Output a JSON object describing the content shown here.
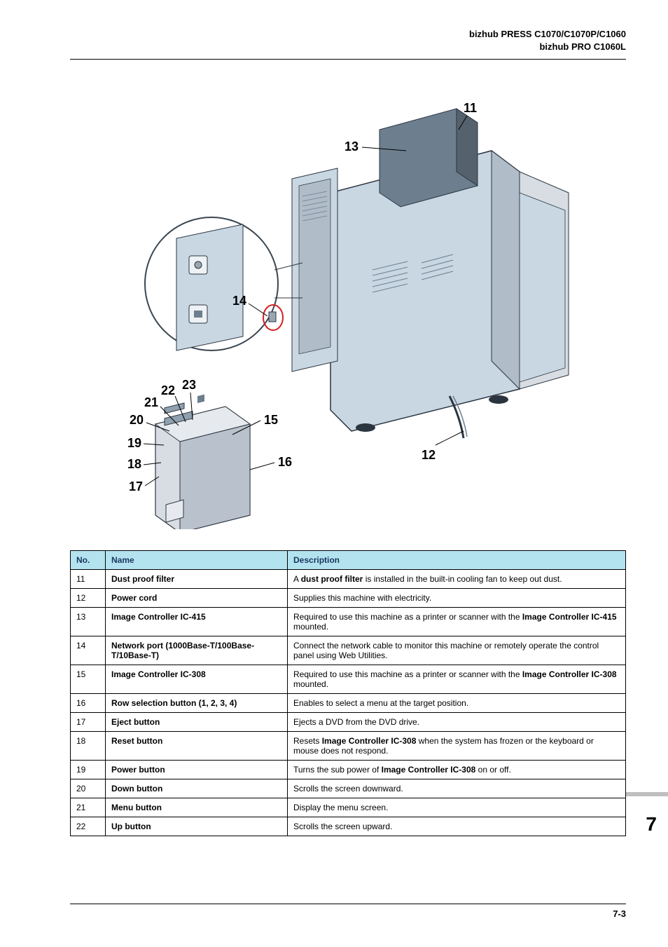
{
  "header": {
    "line1": "bizhub PRESS C1070/C1070P/C1060",
    "line2": "bizhub PRO C1060L"
  },
  "diagram": {
    "callouts": [
      "11",
      "12",
      "13",
      "14",
      "15",
      "16",
      "17",
      "18",
      "19",
      "20",
      "21",
      "22",
      "23"
    ],
    "machine_body_fill": "#c9d7e3",
    "machine_dark_fill": "#6d7f8e",
    "inset_circle_stroke": "#3a4650",
    "controller_body_fill": "#d7dde3",
    "controller_front_fill": "#b9c2cc",
    "redcircle_stroke": "#d42020"
  },
  "table": {
    "headers": [
      "No.",
      "Name",
      "Description"
    ],
    "header_bg": "#b4e3f0",
    "header_fg": "#17365d",
    "rows": [
      {
        "no": "11",
        "name": "Dust proof filter",
        "desc_pre": "A ",
        "desc_bold": "dust proof filter",
        "desc_post": " is installed in the built-in cooling fan to keep out dust."
      },
      {
        "no": "12",
        "name": "Power cord",
        "desc_pre": "Supplies this machine with electricity.",
        "desc_bold": "",
        "desc_post": ""
      },
      {
        "no": "13",
        "name": "Image Controller IC-415",
        "desc_pre": "Required to use this machine as a printer or scanner with the ",
        "desc_bold": "Image Controller IC-415",
        "desc_post": " mounted."
      },
      {
        "no": "14",
        "name": "Network port (1000Base-T/100Base-T/10Base-T)",
        "desc_pre": "Connect the network cable to monitor this machine or remotely operate the control panel using Web Utilities.",
        "desc_bold": "",
        "desc_post": ""
      },
      {
        "no": "15",
        "name": "Image Controller IC-308",
        "desc_pre": "Required to use this machine as a printer or scanner with the ",
        "desc_bold": "Image Controller IC-308",
        "desc_post": " mounted."
      },
      {
        "no": "16",
        "name": "Row selection button (1, 2, 3, 4)",
        "desc_pre": "Enables to select a menu at the target position.",
        "desc_bold": "",
        "desc_post": ""
      },
      {
        "no": "17",
        "name": "Eject button",
        "desc_pre": "Ejects a DVD from the DVD drive.",
        "desc_bold": "",
        "desc_post": ""
      },
      {
        "no": "18",
        "name": "Reset button",
        "desc_pre": "Resets ",
        "desc_bold": "Image Controller IC-308",
        "desc_post": " when the system has frozen or the keyboard or mouse does not respond."
      },
      {
        "no": "19",
        "name": "Power button",
        "desc_pre": "Turns the sub power of ",
        "desc_bold": "Image Controller IC-308",
        "desc_post": " on or off."
      },
      {
        "no": "20",
        "name": "Down button",
        "desc_pre": "Scrolls the screen downward.",
        "desc_bold": "",
        "desc_post": ""
      },
      {
        "no": "21",
        "name": "Menu button",
        "desc_pre": "Display the menu screen.",
        "desc_bold": "",
        "desc_post": ""
      },
      {
        "no": "22",
        "name": "Up button",
        "desc_pre": "Scrolls the screen upward.",
        "desc_bold": "",
        "desc_post": ""
      }
    ]
  },
  "chapter_number": "7",
  "page_number": "7-3"
}
